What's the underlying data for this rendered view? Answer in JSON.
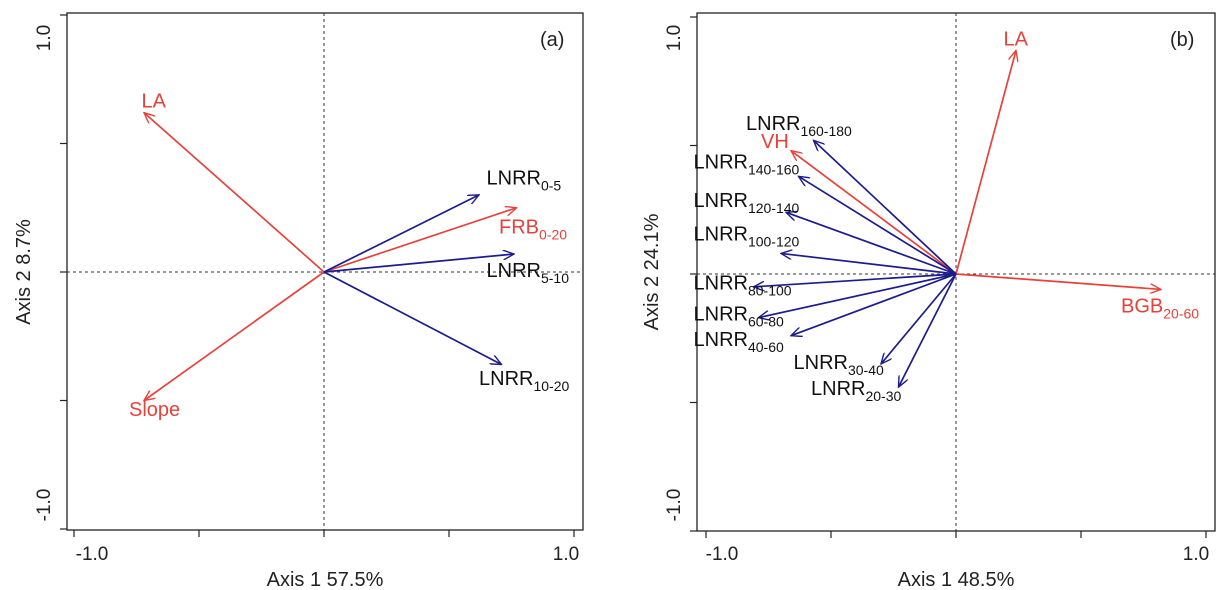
{
  "colors": {
    "red": "#e8413a",
    "blue": "#1c1c8c",
    "frame": "#222222"
  },
  "chart_data": [
    {
      "type": "biplot",
      "panel": "(a)",
      "xlabel": "Axis 1 57.5%",
      "ylabel": "Axis 2 8.7%",
      "xlim": [
        -1.0,
        1.0
      ],
      "ylim": [
        -1.0,
        1.0
      ],
      "xticks": [
        "-1.0",
        "1.0"
      ],
      "yticks": [
        "1.0",
        "-1.0"
      ],
      "vectors": [
        {
          "base": "LA",
          "sub": "",
          "x": -0.72,
          "y": 0.62,
          "color": "red",
          "lx": -0.73,
          "ly": 0.64
        },
        {
          "base": "Slope",
          "sub": "",
          "x": -0.72,
          "y": -0.5,
          "color": "red",
          "lx": -0.78,
          "ly": -0.56
        },
        {
          "base": "FRB",
          "sub": "0-20",
          "x": 0.77,
          "y": 0.25,
          "color": "red",
          "lx": 0.7,
          "ly": 0.15
        },
        {
          "base": "LNRR",
          "sub": "0-5",
          "x": 0.62,
          "y": 0.3,
          "color": "blue",
          "lx": 0.65,
          "ly": 0.34
        },
        {
          "base": "LNRR",
          "sub": "5-10",
          "x": 0.76,
          "y": 0.07,
          "color": "blue",
          "lx": 0.65,
          "ly": -0.02
        },
        {
          "base": "LNRR",
          "sub": "10-20",
          "x": 0.71,
          "y": -0.36,
          "color": "blue",
          "lx": 0.62,
          "ly": -0.44
        }
      ]
    },
    {
      "type": "biplot",
      "panel": "(b)",
      "xlabel": "Axis 1 48.5%",
      "ylabel": "Axis 2 24.1%",
      "xlim": [
        -1.0,
        1.0
      ],
      "ylim": [
        -1.0,
        1.0
      ],
      "xticks": [
        "-1.0",
        "1.0"
      ],
      "yticks": [
        "1.0",
        "-1.0"
      ],
      "vectors": [
        {
          "base": "LA",
          "sub": "",
          "x": 0.24,
          "y": 0.87,
          "color": "red",
          "lx": 0.19,
          "ly": 0.89
        },
        {
          "base": "VH",
          "sub": "",
          "x": -0.66,
          "y": 0.48,
          "color": "red",
          "lx": -0.78,
          "ly": 0.49
        },
        {
          "base": "BGB",
          "sub": "20-60",
          "x": 0.82,
          "y": -0.06,
          "color": "red",
          "lx": 0.66,
          "ly": -0.15
        },
        {
          "base": "LNRR",
          "sub": "160-180",
          "x": -0.57,
          "y": 0.52,
          "color": "blue",
          "lx": -0.84,
          "ly": 0.56
        },
        {
          "base": "LNRR",
          "sub": "140-160",
          "x": -0.63,
          "y": 0.38,
          "color": "blue",
          "lx": -1.05,
          "ly": 0.41
        },
        {
          "base": "LNRR",
          "sub": "120-140",
          "x": -0.68,
          "y": 0.24,
          "color": "blue",
          "lx": -1.05,
          "ly": 0.26
        },
        {
          "base": "LNRR",
          "sub": "100-120",
          "x": -0.7,
          "y": 0.08,
          "color": "blue",
          "lx": -1.05,
          "ly": 0.13
        },
        {
          "base": "LNRR",
          "sub": "80-100",
          "x": -0.81,
          "y": -0.05,
          "color": "blue",
          "lx": -1.05,
          "ly": -0.06
        },
        {
          "base": "LNRR",
          "sub": "60-80",
          "x": -0.79,
          "y": -0.17,
          "color": "blue",
          "lx": -1.05,
          "ly": -0.18
        },
        {
          "base": "LNRR",
          "sub": "40-60",
          "x": -0.66,
          "y": -0.24,
          "color": "blue",
          "lx": -1.05,
          "ly": -0.28
        },
        {
          "base": "LNRR",
          "sub": "30-40",
          "x": -0.3,
          "y": -0.35,
          "color": "blue",
          "lx": -0.65,
          "ly": -0.37
        },
        {
          "base": "LNRR",
          "sub": "20-30",
          "x": -0.23,
          "y": -0.44,
          "color": "blue",
          "lx": -0.58,
          "ly": -0.47
        }
      ]
    }
  ]
}
